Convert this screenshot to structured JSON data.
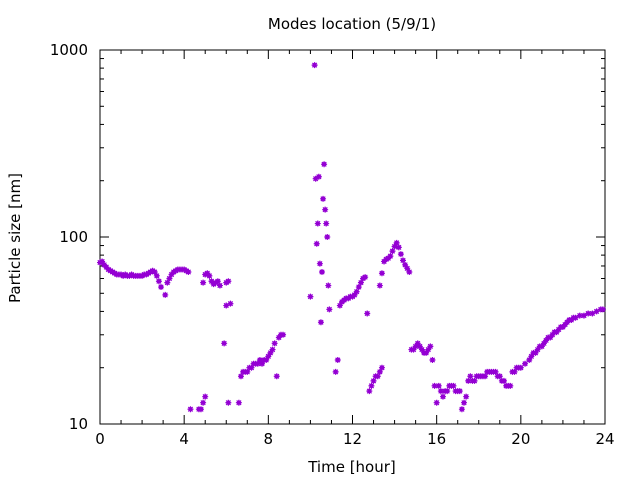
{
  "chart_data": {
    "type": "scatter",
    "title": "Modes location (5/9/1)",
    "xlabel": "Time [hour]",
    "ylabel": "Particle size [nm]",
    "xlim": [
      0,
      24
    ],
    "ylim": [
      10,
      1000
    ],
    "y_scale": "log",
    "grid": false,
    "x_ticks": [
      0,
      4,
      8,
      12,
      16,
      20,
      24
    ],
    "x_tick_labels": [
      "0",
      "4",
      "8",
      "12",
      "16",
      "20",
      "24"
    ],
    "y_ticks": [
      10,
      100,
      1000
    ],
    "y_tick_labels": [
      "10",
      "100",
      "1000"
    ],
    "marker_color": "#9400d3",
    "points": [
      [
        0.0,
        73
      ],
      [
        0.1,
        74
      ],
      [
        0.2,
        71
      ],
      [
        0.3,
        69
      ],
      [
        0.4,
        67
      ],
      [
        0.5,
        66
      ],
      [
        0.6,
        65
      ],
      [
        0.7,
        64
      ],
      [
        0.8,
        63
      ],
      [
        0.9,
        63
      ],
      [
        1.0,
        63
      ],
      [
        1.1,
        62
      ],
      [
        1.2,
        63
      ],
      [
        1.3,
        62
      ],
      [
        1.4,
        62
      ],
      [
        1.5,
        63
      ],
      [
        1.6,
        62
      ],
      [
        1.7,
        62
      ],
      [
        1.8,
        62
      ],
      [
        1.9,
        62
      ],
      [
        2.0,
        62
      ],
      [
        2.1,
        63
      ],
      [
        2.2,
        63
      ],
      [
        2.3,
        64
      ],
      [
        2.4,
        65
      ],
      [
        2.5,
        66
      ],
      [
        2.6,
        65
      ],
      [
        2.7,
        62
      ],
      [
        2.8,
        58
      ],
      [
        2.9,
        54
      ],
      [
        3.1,
        49
      ],
      [
        3.2,
        57
      ],
      [
        3.3,
        60
      ],
      [
        3.4,
        63
      ],
      [
        3.5,
        65
      ],
      [
        3.6,
        66
      ],
      [
        3.7,
        67
      ],
      [
        3.8,
        67
      ],
      [
        3.9,
        67
      ],
      [
        4.0,
        67
      ],
      [
        4.1,
        66
      ],
      [
        4.2,
        65
      ],
      [
        4.3,
        12
      ],
      [
        4.7,
        12
      ],
      [
        4.8,
        12
      ],
      [
        4.9,
        13
      ],
      [
        5.0,
        14
      ],
      [
        4.9,
        57
      ],
      [
        5.0,
        63
      ],
      [
        5.1,
        64
      ],
      [
        5.2,
        62
      ],
      [
        5.3,
        58
      ],
      [
        5.4,
        56
      ],
      [
        5.5,
        57
      ],
      [
        5.6,
        58
      ],
      [
        5.7,
        55
      ],
      [
        5.9,
        27
      ],
      [
        6.0,
        43
      ],
      [
        6.1,
        13
      ],
      [
        6.2,
        44
      ],
      [
        6.1,
        58
      ],
      [
        6.0,
        57
      ],
      [
        6.6,
        13
      ],
      [
        6.7,
        18
      ],
      [
        6.8,
        19
      ],
      [
        6.9,
        19
      ],
      [
        7.0,
        19
      ],
      [
        7.1,
        20
      ],
      [
        7.2,
        20
      ],
      [
        7.3,
        21
      ],
      [
        7.4,
        21
      ],
      [
        7.5,
        21
      ],
      [
        7.6,
        22
      ],
      [
        7.7,
        21
      ],
      [
        7.8,
        22
      ],
      [
        7.9,
        22
      ],
      [
        8.0,
        23
      ],
      [
        8.1,
        24
      ],
      [
        8.2,
        25
      ],
      [
        8.3,
        27
      ],
      [
        8.4,
        18
      ],
      [
        8.5,
        29
      ],
      [
        8.6,
        30
      ],
      [
        8.7,
        30
      ],
      [
        10.0,
        48
      ],
      [
        10.2,
        830
      ],
      [
        10.25,
        205
      ],
      [
        10.3,
        92
      ],
      [
        10.35,
        118
      ],
      [
        10.4,
        210
      ],
      [
        10.45,
        72
      ],
      [
        10.5,
        35
      ],
      [
        10.55,
        65
      ],
      [
        10.6,
        160
      ],
      [
        10.65,
        245
      ],
      [
        10.7,
        140
      ],
      [
        10.75,
        118
      ],
      [
        10.8,
        100
      ],
      [
        10.85,
        55
      ],
      [
        10.9,
        41
      ],
      [
        11.2,
        19
      ],
      [
        11.3,
        22
      ],
      [
        11.4,
        43
      ],
      [
        11.5,
        45
      ],
      [
        11.6,
        46
      ],
      [
        11.7,
        47
      ],
      [
        11.8,
        47
      ],
      [
        11.9,
        48
      ],
      [
        12.0,
        48
      ],
      [
        12.1,
        49
      ],
      [
        12.2,
        51
      ],
      [
        12.3,
        54
      ],
      [
        12.4,
        57
      ],
      [
        12.5,
        60
      ],
      [
        12.6,
        61
      ],
      [
        12.7,
        39
      ],
      [
        12.8,
        15
      ],
      [
        12.9,
        16
      ],
      [
        13.0,
        17
      ],
      [
        13.1,
        18
      ],
      [
        13.2,
        18
      ],
      [
        13.3,
        19
      ],
      [
        13.4,
        20
      ],
      [
        13.3,
        55
      ],
      [
        13.4,
        64
      ],
      [
        13.5,
        74
      ],
      [
        13.6,
        76
      ],
      [
        13.7,
        77
      ],
      [
        13.8,
        79
      ],
      [
        13.9,
        84
      ],
      [
        14.0,
        89
      ],
      [
        14.1,
        93
      ],
      [
        14.2,
        88
      ],
      [
        14.3,
        81
      ],
      [
        14.4,
        75
      ],
      [
        14.5,
        71
      ],
      [
        14.6,
        68
      ],
      [
        14.7,
        65
      ],
      [
        14.8,
        25
      ],
      [
        14.9,
        25
      ],
      [
        15.0,
        26
      ],
      [
        15.1,
        27
      ],
      [
        15.2,
        26
      ],
      [
        15.3,
        25
      ],
      [
        15.4,
        24
      ],
      [
        15.5,
        24
      ],
      [
        15.6,
        25
      ],
      [
        15.7,
        26
      ],
      [
        15.8,
        22
      ],
      [
        15.9,
        16
      ],
      [
        16.0,
        13
      ],
      [
        16.1,
        16
      ],
      [
        16.2,
        15
      ],
      [
        16.3,
        14
      ],
      [
        16.4,
        15
      ],
      [
        16.5,
        15
      ],
      [
        16.6,
        16
      ],
      [
        16.7,
        16
      ],
      [
        16.8,
        16
      ],
      [
        16.9,
        15
      ],
      [
        17.0,
        15
      ],
      [
        17.1,
        15
      ],
      [
        17.2,
        12
      ],
      [
        17.3,
        13
      ],
      [
        17.4,
        14
      ],
      [
        17.5,
        17
      ],
      [
        17.6,
        18
      ],
      [
        17.7,
        17
      ],
      [
        17.8,
        17
      ],
      [
        17.9,
        18
      ],
      [
        18.0,
        18
      ],
      [
        18.1,
        18
      ],
      [
        18.2,
        18
      ],
      [
        18.3,
        18
      ],
      [
        18.4,
        19
      ],
      [
        18.5,
        19
      ],
      [
        18.6,
        19
      ],
      [
        18.7,
        19
      ],
      [
        18.8,
        19
      ],
      [
        18.9,
        18
      ],
      [
        19.0,
        18
      ],
      [
        19.1,
        17
      ],
      [
        19.2,
        17
      ],
      [
        19.3,
        16
      ],
      [
        19.4,
        16
      ],
      [
        19.5,
        16
      ],
      [
        19.6,
        19
      ],
      [
        19.7,
        19
      ],
      [
        19.8,
        20
      ],
      [
        19.9,
        20
      ],
      [
        20.0,
        20
      ],
      [
        20.2,
        21
      ],
      [
        20.4,
        22
      ],
      [
        20.5,
        23
      ],
      [
        20.6,
        24
      ],
      [
        20.7,
        24
      ],
      [
        20.8,
        25
      ],
      [
        20.9,
        26
      ],
      [
        21.0,
        26
      ],
      [
        21.1,
        27
      ],
      [
        21.2,
        28
      ],
      [
        21.3,
        29
      ],
      [
        21.4,
        29
      ],
      [
        21.5,
        30
      ],
      [
        21.6,
        31
      ],
      [
        21.7,
        31
      ],
      [
        21.8,
        32
      ],
      [
        21.9,
        33
      ],
      [
        22.0,
        33
      ],
      [
        22.1,
        34
      ],
      [
        22.2,
        35
      ],
      [
        22.3,
        36
      ],
      [
        22.4,
        36
      ],
      [
        22.5,
        37
      ],
      [
        22.6,
        37
      ],
      [
        22.8,
        38
      ],
      [
        23.0,
        38
      ],
      [
        23.2,
        39
      ],
      [
        23.4,
        39
      ],
      [
        23.6,
        40
      ],
      [
        23.8,
        41
      ],
      [
        23.9,
        41
      ]
    ]
  }
}
